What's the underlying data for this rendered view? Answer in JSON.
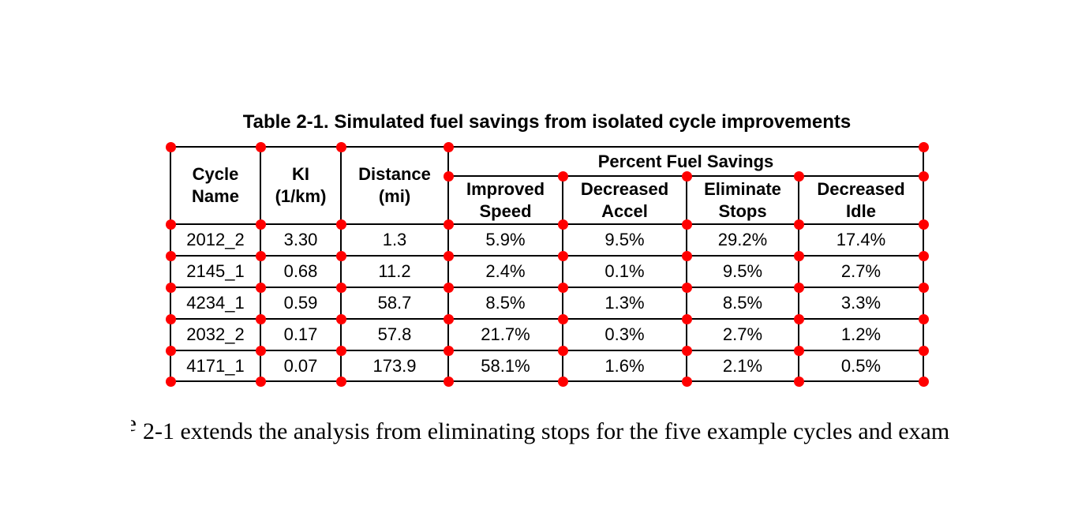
{
  "title": "Table 2-1. Simulated fuel savings from isolated cycle improvements",
  "table": {
    "group_header": "Percent Fuel Savings",
    "columns": [
      {
        "label": "Cycle\nName"
      },
      {
        "label": "KI\n(1/km)"
      },
      {
        "label": "Distance\n(mi)"
      },
      {
        "label": "Improved\nSpeed"
      },
      {
        "label": "Decreased\nAccel"
      },
      {
        "label": "Eliminate\nStops"
      },
      {
        "label": "Decreased\nIdle"
      }
    ],
    "rows": [
      {
        "cells": [
          "2012_2",
          "3.30",
          "1.3",
          "5.9%",
          "9.5%",
          "29.2%",
          "17.4%"
        ]
      },
      {
        "cells": [
          "2145_1",
          "0.68",
          "11.2",
          "2.4%",
          "0.1%",
          "9.5%",
          "2.7%"
        ]
      },
      {
        "cells": [
          "4234_1",
          "0.59",
          "58.7",
          "8.5%",
          "1.3%",
          "8.5%",
          "3.3%"
        ]
      },
      {
        "cells": [
          "2032_2",
          "0.17",
          "57.8",
          "21.7%",
          "0.3%",
          "2.7%",
          "1.2%"
        ]
      },
      {
        "cells": [
          "4171_1",
          "0.07",
          "173.9",
          "58.1%",
          "1.6%",
          "2.1%",
          "0.5%"
        ]
      }
    ]
  },
  "caption": {
    "fragment": "e",
    "text": "2-1 extends the analysis from eliminating stops for the five example cycles and exam"
  },
  "markers": {
    "color": "#ff0000"
  }
}
